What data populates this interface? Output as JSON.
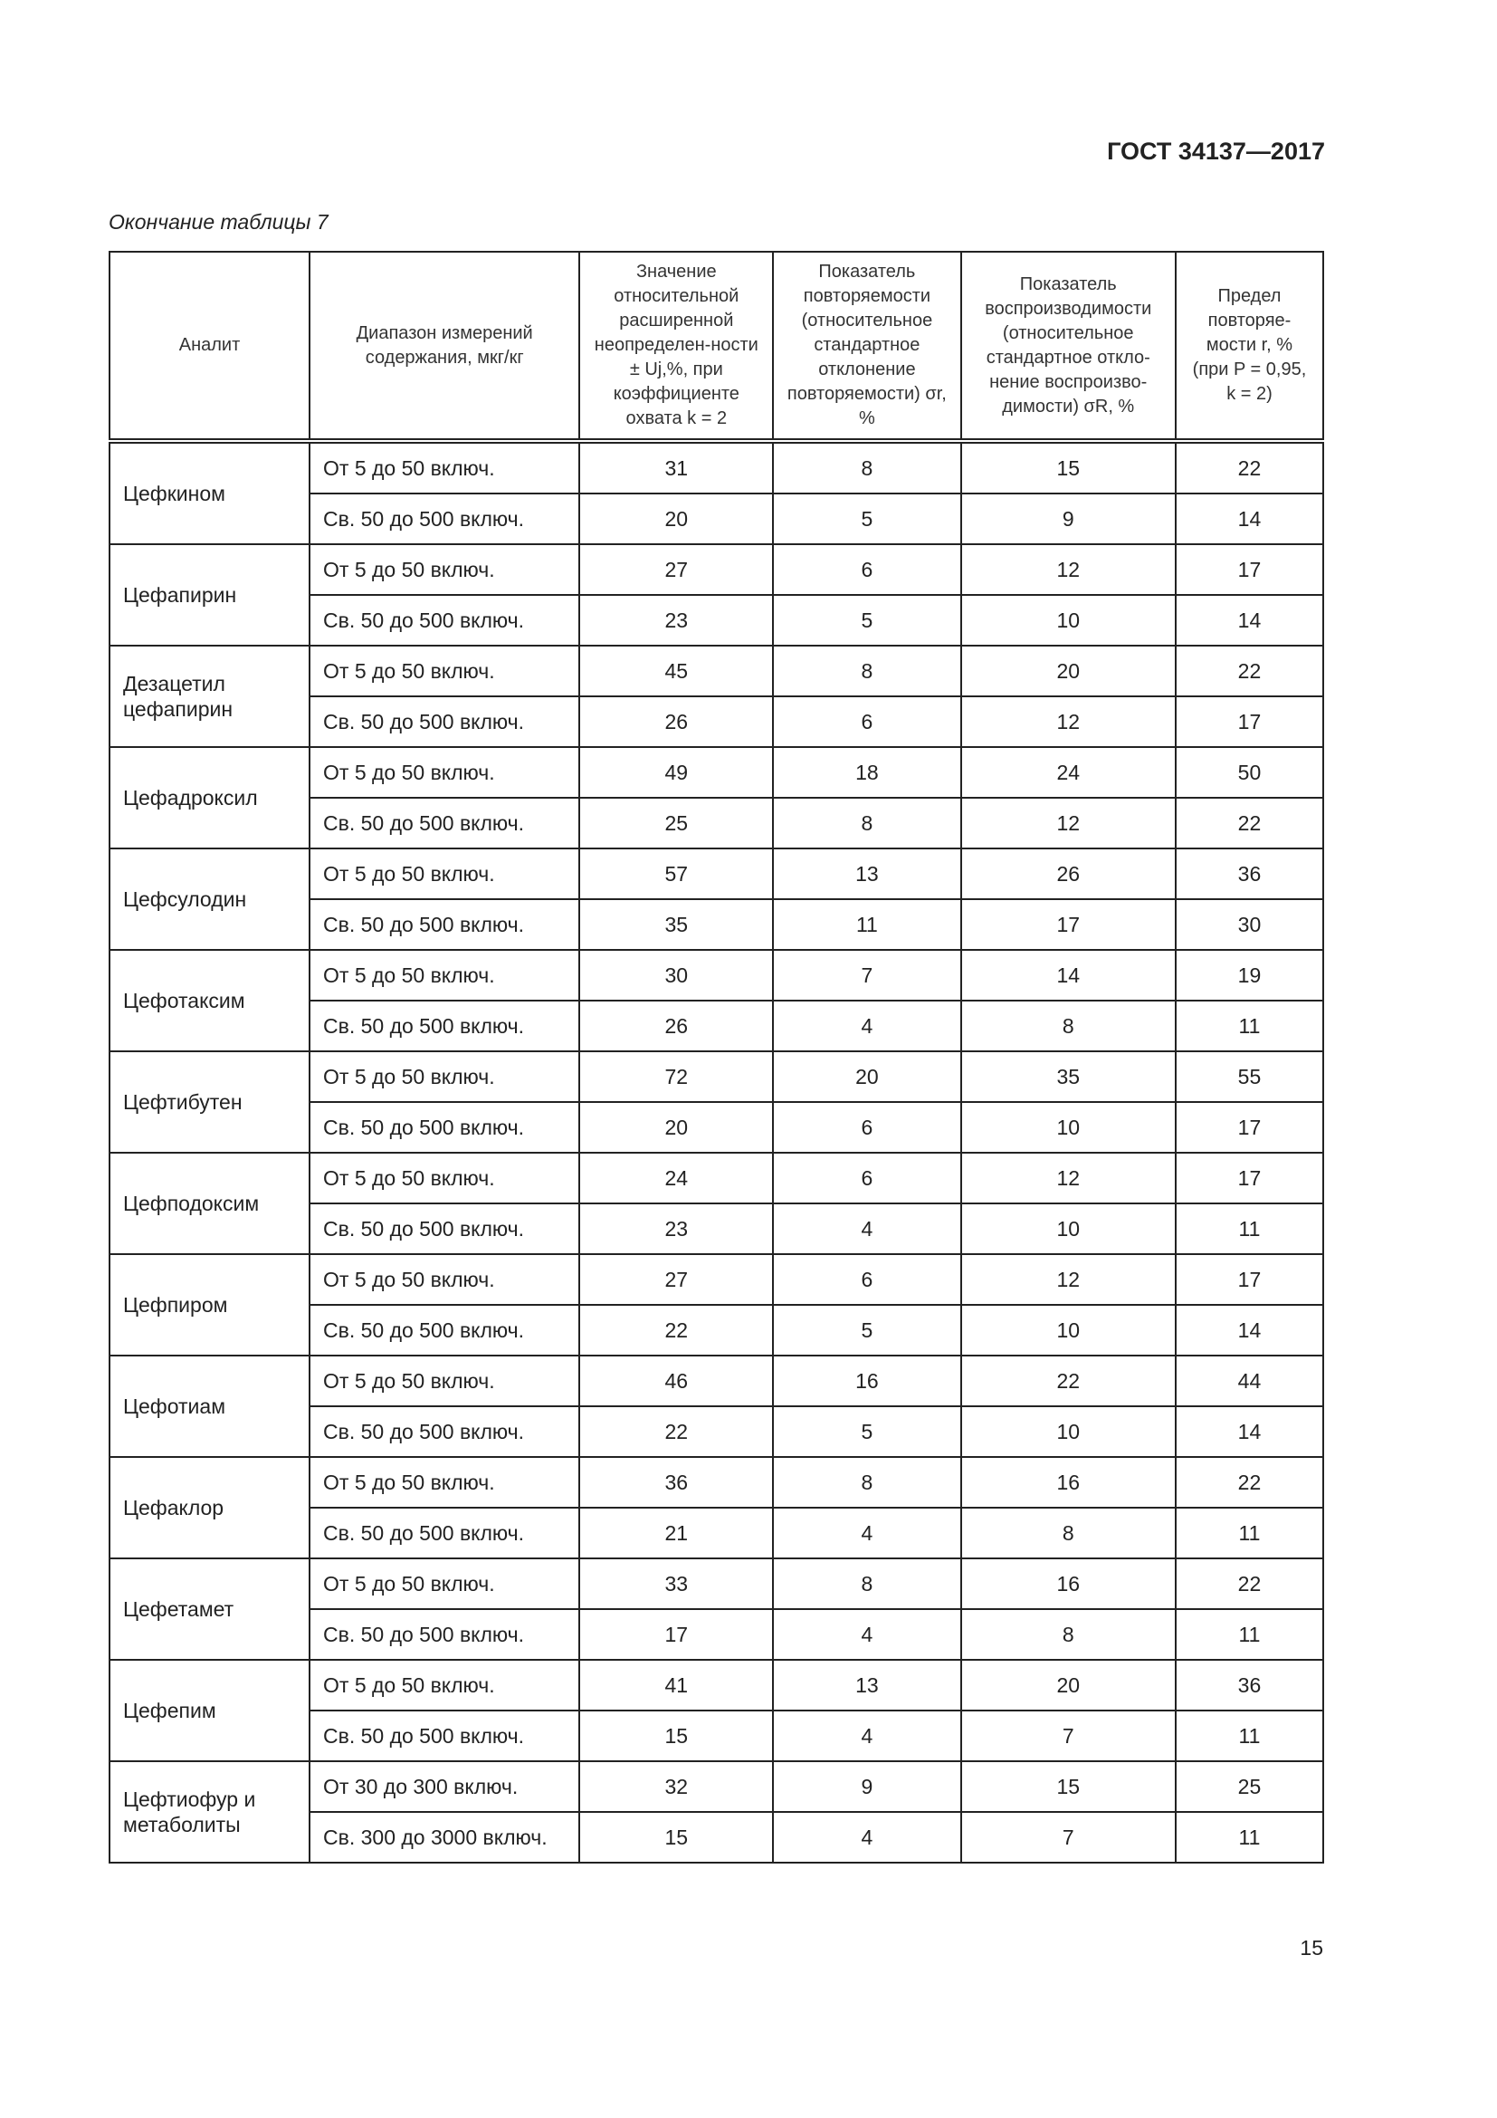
{
  "doc_id": "ГОСТ 34137—2017",
  "caption": "Окончание таблицы 7",
  "page_number": "15",
  "table": {
    "headers": [
      "Аналит",
      "Диапазон измерений содержания, мкг/кг",
      "Значение относительной расширенной неопределен-ности ± Uj,%, при коэффициенте охвата k = 2",
      "Показатель повторяемости (относительное стандартное отклонение повторяемости) σr, %",
      "Показатель воспроизводимости (относительное стандартное откло-нение воспроизво-димости) σR, %",
      "Предел повторяе-мости r, % (при P = 0,95, k = 2)"
    ],
    "groups": [
      {
        "analyte": "Цефкином",
        "rows": [
          [
            "От 5 до 50 включ.",
            "31",
            "8",
            "15",
            "22"
          ],
          [
            "Св. 50 до 500 включ.",
            "20",
            "5",
            "9",
            "14"
          ]
        ]
      },
      {
        "analyte": "Цефапирин",
        "rows": [
          [
            "От 5 до 50 включ.",
            "27",
            "6",
            "12",
            "17"
          ],
          [
            "Св. 50 до 500 включ.",
            "23",
            "5",
            "10",
            "14"
          ]
        ]
      },
      {
        "analyte": "Дезацетил цефапирин",
        "rows": [
          [
            "От 5 до 50 включ.",
            "45",
            "8",
            "20",
            "22"
          ],
          [
            "Св. 50 до 500 включ.",
            "26",
            "6",
            "12",
            "17"
          ]
        ]
      },
      {
        "analyte": "Цефадроксил",
        "rows": [
          [
            "От 5 до 50 включ.",
            "49",
            "18",
            "24",
            "50"
          ],
          [
            "Св. 50 до 500 включ.",
            "25",
            "8",
            "12",
            "22"
          ]
        ]
      },
      {
        "analyte": "Цефсулодин",
        "rows": [
          [
            "От 5 до 50 включ.",
            "57",
            "13",
            "26",
            "36"
          ],
          [
            "Св. 50 до 500 включ.",
            "35",
            "11",
            "17",
            "30"
          ]
        ]
      },
      {
        "analyte": "Цефотаксим",
        "rows": [
          [
            "От 5 до 50 включ.",
            "30",
            "7",
            "14",
            "19"
          ],
          [
            "Св. 50 до 500 включ.",
            "26",
            "4",
            "8",
            "11"
          ]
        ]
      },
      {
        "analyte": "Цефтибутен",
        "rows": [
          [
            "От 5 до 50 включ.",
            "72",
            "20",
            "35",
            "55"
          ],
          [
            "Св. 50 до 500 включ.",
            "20",
            "6",
            "10",
            "17"
          ]
        ]
      },
      {
        "analyte": "Цефподоксим",
        "rows": [
          [
            "От 5 до 50 включ.",
            "24",
            "6",
            "12",
            "17"
          ],
          [
            "Св. 50 до 500 включ.",
            "23",
            "4",
            "10",
            "11"
          ]
        ]
      },
      {
        "analyte": "Цефпиром",
        "rows": [
          [
            "От 5 до 50 включ.",
            "27",
            "6",
            "12",
            "17"
          ],
          [
            "Св. 50 до 500 включ.",
            "22",
            "5",
            "10",
            "14"
          ]
        ]
      },
      {
        "analyte": "Цефотиам",
        "rows": [
          [
            "От 5 до 50 включ.",
            "46",
            "16",
            "22",
            "44"
          ],
          [
            "Св. 50 до 500 включ.",
            "22",
            "5",
            "10",
            "14"
          ]
        ]
      },
      {
        "analyte": "Цефаклор",
        "rows": [
          [
            "От 5 до 50 включ.",
            "36",
            "8",
            "16",
            "22"
          ],
          [
            "Св. 50 до 500 включ.",
            "21",
            "4",
            "8",
            "11"
          ]
        ]
      },
      {
        "analyte": "Цефетамет",
        "rows": [
          [
            "От 5 до 50 включ.",
            "33",
            "8",
            "16",
            "22"
          ],
          [
            "Св. 50 до 500 включ.",
            "17",
            "4",
            "8",
            "11"
          ]
        ]
      },
      {
        "analyte": "Цефепим",
        "rows": [
          [
            "От 5 до 50 включ.",
            "41",
            "13",
            "20",
            "36"
          ],
          [
            "Св. 50 до 500 включ.",
            "15",
            "4",
            "7",
            "11"
          ]
        ]
      },
      {
        "analyte": "Цефтиофур и метаболиты",
        "rows": [
          [
            "От 30 до 300 включ.",
            "32",
            "9",
            "15",
            "25"
          ],
          [
            "Св. 300 до 3000 включ.",
            "15",
            "4",
            "7",
            "11"
          ]
        ]
      }
    ]
  }
}
